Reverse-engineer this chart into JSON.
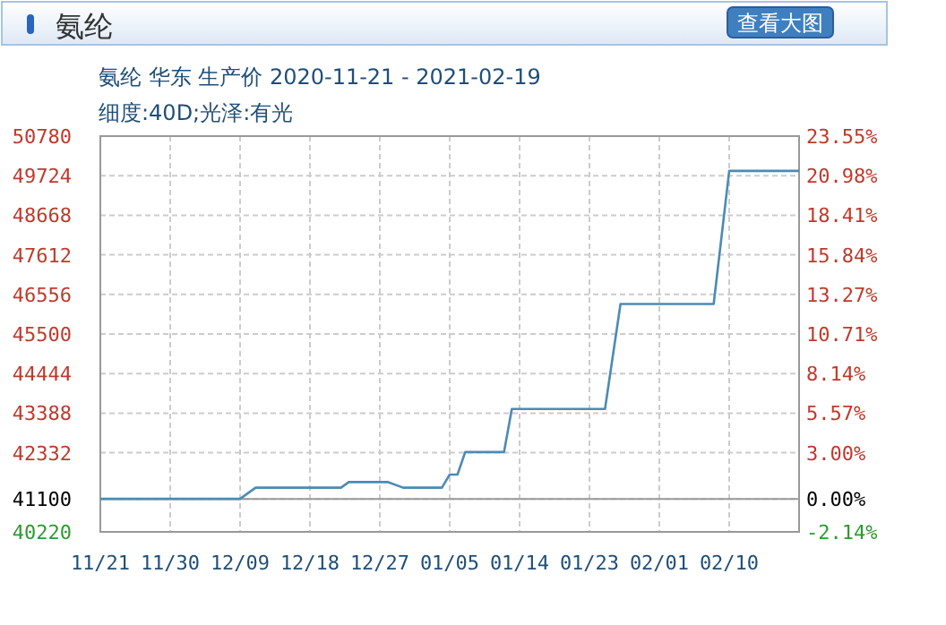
{
  "chart_data": {
    "type": "line",
    "title": "氨纶",
    "subtitle": "氨纶 华东 生产价 2020-11-21 - 2021-02-19",
    "annotations": [
      "细度:40D;光泽:有光",
      "查看大图"
    ],
    "x": [
      "2020-11-21",
      "2020-12-09",
      "2020-12-11",
      "2020-12-22",
      "2020-12-23",
      "2020-12-28",
      "2020-12-30",
      "2021-01-04",
      "2021-01-05",
      "2021-01-06",
      "2021-01-07",
      "2021-01-12",
      "2021-01-13",
      "2021-01-25",
      "2021-01-27",
      "2021-02-08",
      "2021-02-10",
      "2021-02-19"
    ],
    "series": [
      {
        "color": "#4b8bb5",
        "values": [
          41100,
          41100,
          41400,
          41400,
          41550,
          41550,
          41400,
          41400,
          41750,
          41750,
          42350,
          42350,
          43500,
          43500,
          46300,
          46300,
          49850,
          49850
        ]
      }
    ],
    "xlim": [
      "2020-11-21",
      "2021-02-19"
    ],
    "xticks": [
      {
        "value": "2020-11-21",
        "label": "11/21"
      },
      {
        "value": "2020-11-30",
        "label": "11/30"
      },
      {
        "value": "2020-12-09",
        "label": "12/09"
      },
      {
        "value": "2020-12-18",
        "label": "12/18"
      },
      {
        "value": "2020-12-27",
        "label": "12/27"
      },
      {
        "value": "2021-01-05",
        "label": "01/05"
      },
      {
        "value": "2021-01-14",
        "label": "01/14"
      },
      {
        "value": "2021-01-23",
        "label": "01/23"
      },
      {
        "value": "2021-02-01",
        "label": "02/01"
      },
      {
        "value": "2021-02-10",
        "label": "02/10"
      }
    ],
    "ylim": [
      40220,
      50780
    ],
    "yticks": [
      40220,
      41100,
      42332,
      43388,
      44444,
      45500,
      46556,
      47612,
      48668,
      49724,
      50780
    ],
    "y2lim": [
      -2.14,
      23.55
    ],
    "y2ticks": [
      {
        "value": -2.14,
        "label": "-2.14%"
      },
      {
        "value": 0,
        "label": "0.00%"
      },
      {
        "value": 3.0,
        "label": "3.00%"
      },
      {
        "value": 5.57,
        "label": "5.57%"
      },
      {
        "value": 8.14,
        "label": "8.14%"
      },
      {
        "value": 10.71,
        "label": "10.71%"
      },
      {
        "value": 13.27,
        "label": "13.27%"
      },
      {
        "value": 15.84,
        "label": "15.84%"
      },
      {
        "value": 18.41,
        "label": "18.41%"
      },
      {
        "value": 20.98,
        "label": "20.98%"
      },
      {
        "value": 23.55,
        "label": "23.55%"
      }
    ],
    "ref_lines": [
      {
        "axis": "y",
        "value": 41100,
        "color": "#999999"
      }
    ],
    "grid": true
  }
}
